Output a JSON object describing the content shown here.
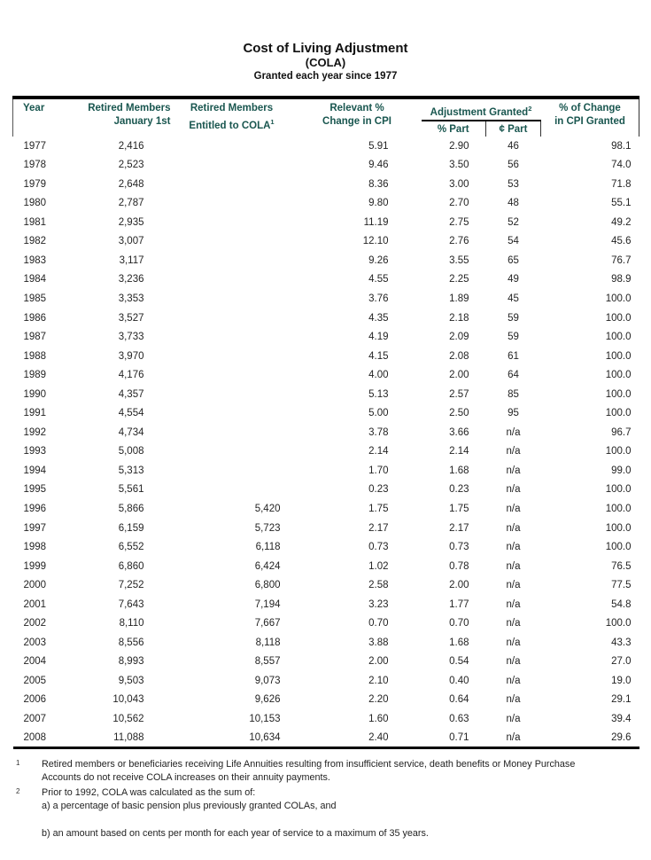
{
  "colors": {
    "header_teal": "#19564f",
    "rule_black": "#000000",
    "page_background": "#ffffff"
  },
  "title": {
    "line1": "Cost of Living Adjustment",
    "line2": "(COLA)",
    "line3": "Granted each year since 1977"
  },
  "table": {
    "headers": {
      "year": "Year",
      "retired_members": "Retired Members\nJanuary 1st",
      "entitled_line1": "Retired Members",
      "entitled_line2": "Entitled to COLA",
      "entitled_sup": "1",
      "relevant_cpi": "Relevant %\nChange in CPI",
      "adjustment_granted": "Adjustment Granted",
      "adjustment_sup": "2",
      "percent_part": "% Part",
      "cent_part": "¢ Part",
      "change_granted": "% of Change\nin CPI Granted"
    },
    "columns": [
      "Year",
      "Retired Members January 1st",
      "Retired Members Entitled to COLA",
      "Relevant % Change in CPI",
      "% Part",
      "¢ Part",
      "% of Change in CPI Granted"
    ],
    "rows": [
      [
        "1977",
        "2,416",
        "",
        "5.91",
        "2.90",
        "46",
        "98.1"
      ],
      [
        "1978",
        "2,523",
        "",
        "9.46",
        "3.50",
        "56",
        "74.0"
      ],
      [
        "1979",
        "2,648",
        "",
        "8.36",
        "3.00",
        "53",
        "71.8"
      ],
      [
        "1980",
        "2,787",
        "",
        "9.80",
        "2.70",
        "48",
        "55.1"
      ],
      [
        "1981",
        "2,935",
        "",
        "11.19",
        "2.75",
        "52",
        "49.2"
      ],
      [
        "1982",
        "3,007",
        "",
        "12.10",
        "2.76",
        "54",
        "45.6"
      ],
      [
        "1983",
        "3,117",
        "",
        "9.26",
        "3.55",
        "65",
        "76.7"
      ],
      [
        "1984",
        "3,236",
        "",
        "4.55",
        "2.25",
        "49",
        "98.9"
      ],
      [
        "1985",
        "3,353",
        "",
        "3.76",
        "1.89",
        "45",
        "100.0"
      ],
      [
        "1986",
        "3,527",
        "",
        "4.35",
        "2.18",
        "59",
        "100.0"
      ],
      [
        "1987",
        "3,733",
        "",
        "4.19",
        "2.09",
        "59",
        "100.0"
      ],
      [
        "1988",
        "3,970",
        "",
        "4.15",
        "2.08",
        "61",
        "100.0"
      ],
      [
        "1989",
        "4,176",
        "",
        "4.00",
        "2.00",
        "64",
        "100.0"
      ],
      [
        "1990",
        "4,357",
        "",
        "5.13",
        "2.57",
        "85",
        "100.0"
      ],
      [
        "1991",
        "4,554",
        "",
        "5.00",
        "2.50",
        "95",
        "100.0"
      ],
      [
        "1992",
        "4,734",
        "",
        "3.78",
        "3.66",
        "n/a",
        "96.7"
      ],
      [
        "1993",
        "5,008",
        "",
        "2.14",
        "2.14",
        "n/a",
        "100.0"
      ],
      [
        "1994",
        "5,313",
        "",
        "1.70",
        "1.68",
        "n/a",
        "99.0"
      ],
      [
        "1995",
        "5,561",
        "",
        "0.23",
        "0.23",
        "n/a",
        "100.0"
      ],
      [
        "1996",
        "5,866",
        "5,420",
        "1.75",
        "1.75",
        "n/a",
        "100.0"
      ],
      [
        "1997",
        "6,159",
        "5,723",
        "2.17",
        "2.17",
        "n/a",
        "100.0"
      ],
      [
        "1998",
        "6,552",
        "6,118",
        "0.73",
        "0.73",
        "n/a",
        "100.0"
      ],
      [
        "1999",
        "6,860",
        "6,424",
        "1.02",
        "0.78",
        "n/a",
        "76.5"
      ],
      [
        "2000",
        "7,252",
        "6,800",
        "2.58",
        "2.00",
        "n/a",
        "77.5"
      ],
      [
        "2001",
        "7,643",
        "7,194",
        "3.23",
        "1.77",
        "n/a",
        "54.8"
      ],
      [
        "2002",
        "8,110",
        "7,667",
        "0.70",
        "0.70",
        "n/a",
        "100.0"
      ],
      [
        "2003",
        "8,556",
        "8,118",
        "3.88",
        "1.68",
        "n/a",
        "43.3"
      ],
      [
        "2004",
        "8,993",
        "8,557",
        "2.00",
        "0.54",
        "n/a",
        "27.0"
      ],
      [
        "2005",
        "9,503",
        "9,073",
        "2.10",
        "0.40",
        "n/a",
        "19.0"
      ],
      [
        "2006",
        "10,043",
        "9,626",
        "2.20",
        "0.64",
        "n/a",
        "29.1"
      ],
      [
        "2007",
        "10,562",
        "10,153",
        "1.60",
        "0.63",
        "n/a",
        "39.4"
      ],
      [
        "2008",
        "11,088",
        "10,634",
        "2.40",
        "0.71",
        "n/a",
        "29.6"
      ]
    ]
  },
  "footnotes": {
    "f1_marker": "1",
    "f1_text": "Retired members or beneficiaries receiving Life Annuities resulting from insufficient service, death benefits or Money Purchase\nAccounts do not receive COLA increases on their annuity payments.",
    "f2_marker": "2",
    "f2_text": "Prior to 1992, COLA was calculated as the sum of:\na) a percentage of basic pension plus previously granted COLAs, and\n\nb) an amount based on cents per month for each year of service to a maximum of 35 years."
  }
}
